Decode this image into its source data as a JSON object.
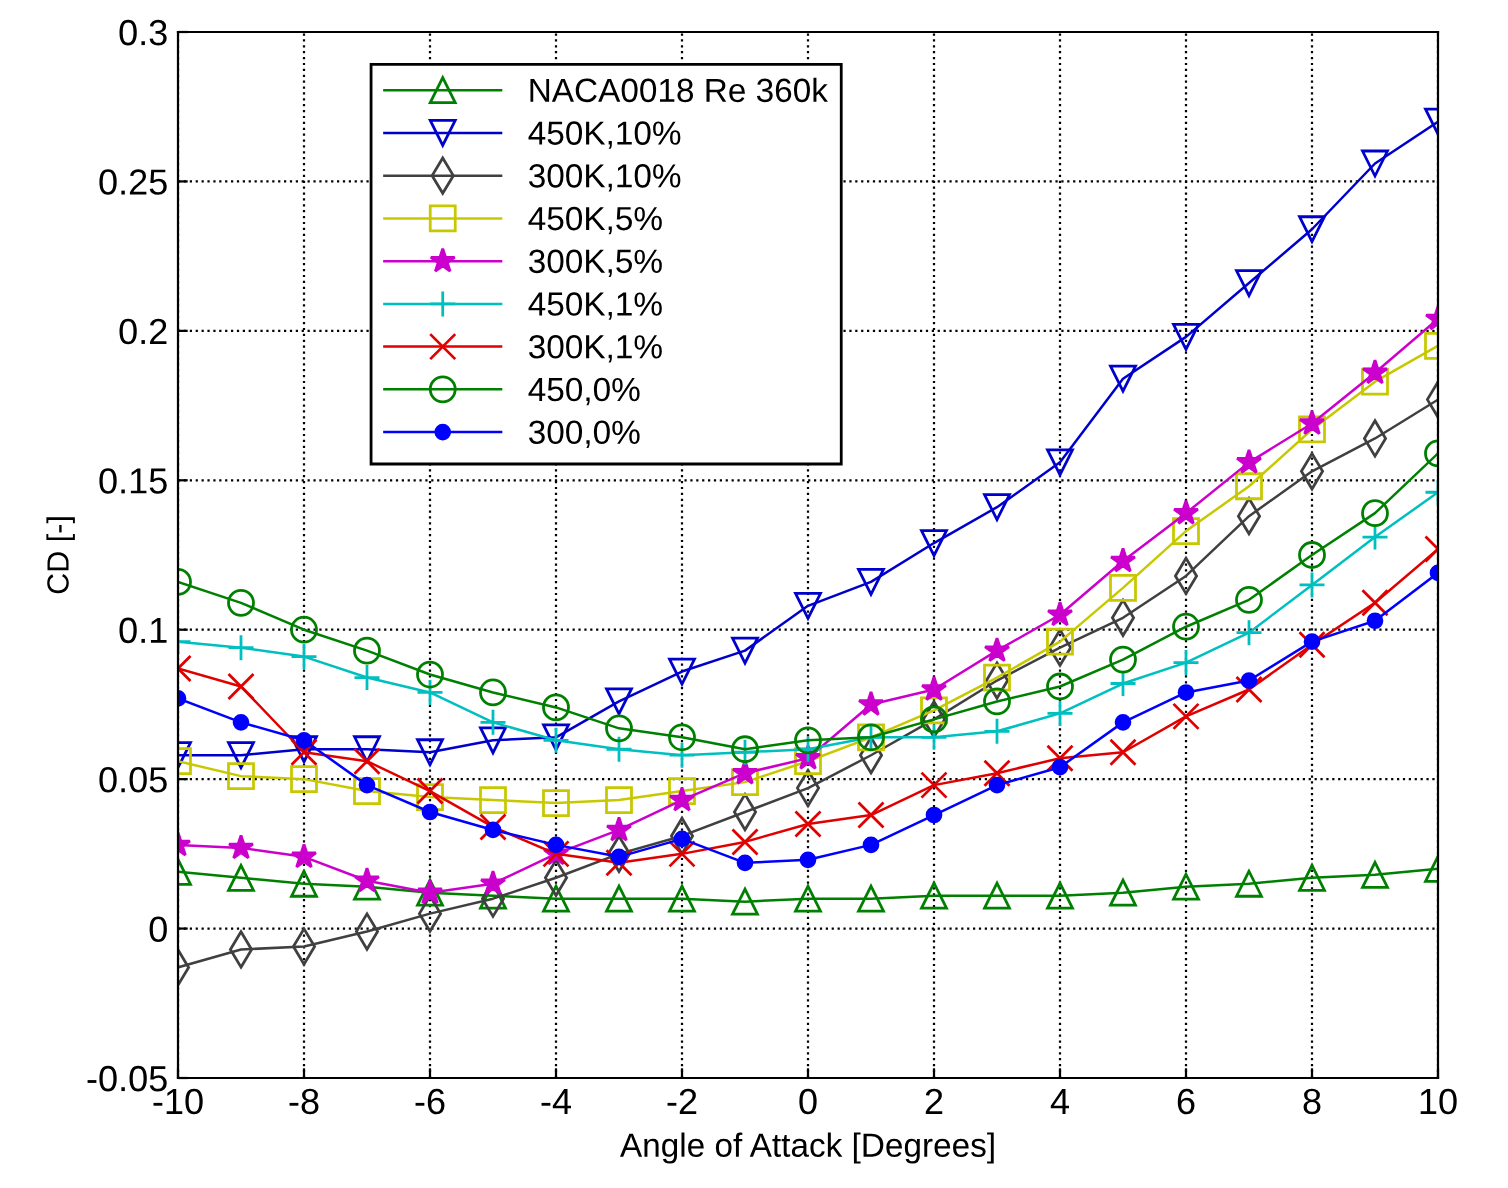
{
  "chart_data": {
    "type": "line",
    "xlabel": "Angle of Attack [Degrees]",
    "ylabel": "CD [-]",
    "x": [
      -10,
      -9,
      -8,
      -7,
      -6,
      -5,
      -4,
      -3,
      -2,
      -1,
      0,
      1,
      2,
      3,
      4,
      5,
      6,
      7,
      8,
      9,
      10
    ],
    "series": [
      {
        "name": "NACA0018 Re 360k",
        "color": "#008000",
        "marker": "triangle",
        "values": [
          0.019,
          0.017,
          0.015,
          0.014,
          0.012,
          0.011,
          0.01,
          0.01,
          0.01,
          0.009,
          0.01,
          0.01,
          0.011,
          0.011,
          0.011,
          0.012,
          0.014,
          0.015,
          0.017,
          0.018,
          0.02
        ]
      },
      {
        "name": "450K,10%",
        "color": "#0000cc",
        "marker": "triangle_down",
        "values": [
          0.058,
          0.058,
          0.06,
          0.06,
          0.059,
          0.063,
          0.064,
          0.076,
          0.086,
          0.093,
          0.108,
          0.116,
          0.129,
          0.141,
          0.156,
          0.184,
          0.198,
          0.216,
          0.234,
          0.256,
          0.27
        ]
      },
      {
        "name": "300K,10%",
        "color": "#404040",
        "marker": "diamond",
        "values": [
          -0.013,
          -0.007,
          -0.006,
          -0.001,
          0.005,
          0.01,
          0.017,
          0.025,
          0.031,
          0.039,
          0.047,
          0.058,
          0.07,
          0.083,
          0.094,
          0.104,
          0.118,
          0.138,
          0.153,
          0.164,
          0.177
        ]
      },
      {
        "name": "450K,5%",
        "color": "#c8c800",
        "marker": "square",
        "values": [
          0.056,
          0.051,
          0.05,
          0.046,
          0.044,
          0.043,
          0.042,
          0.043,
          0.046,
          0.049,
          0.056,
          0.064,
          0.073,
          0.084,
          0.096,
          0.114,
          0.133,
          0.148,
          0.167,
          0.183,
          0.195
        ]
      },
      {
        "name": "300K,5%",
        "color": "#cc00cc",
        "marker": "star",
        "values": [
          0.028,
          0.027,
          0.024,
          0.016,
          0.012,
          0.015,
          0.025,
          0.033,
          0.043,
          0.052,
          0.057,
          0.075,
          0.08,
          0.093,
          0.105,
          0.123,
          0.139,
          0.156,
          0.169,
          0.186,
          0.204
        ]
      },
      {
        "name": "450K,1%",
        "color": "#00bfbf",
        "marker": "plus",
        "values": [
          0.096,
          0.094,
          0.091,
          0.084,
          0.079,
          0.069,
          0.063,
          0.06,
          0.058,
          0.059,
          0.06,
          0.064,
          0.064,
          0.066,
          0.072,
          0.082,
          0.089,
          0.099,
          0.115,
          0.131,
          0.146
        ]
      },
      {
        "name": "300K,1%",
        "color": "#e00000",
        "marker": "x",
        "values": [
          0.087,
          0.081,
          0.059,
          0.056,
          0.046,
          0.034,
          0.025,
          0.022,
          0.025,
          0.029,
          0.035,
          0.038,
          0.048,
          0.052,
          0.057,
          0.059,
          0.071,
          0.08,
          0.095,
          0.109,
          0.127
        ]
      },
      {
        "name": "450,0%",
        "color": "#008000",
        "marker": "circle",
        "values": [
          0.116,
          0.109,
          0.1,
          0.093,
          0.085,
          0.079,
          0.074,
          0.067,
          0.064,
          0.06,
          0.063,
          0.064,
          0.07,
          0.076,
          0.081,
          0.09,
          0.101,
          0.11,
          0.125,
          0.139,
          0.159
        ]
      },
      {
        "name": "300,0%",
        "color": "#0000ff",
        "marker": "point",
        "values": [
          0.077,
          0.069,
          0.063,
          0.048,
          0.039,
          0.033,
          0.028,
          0.024,
          0.03,
          0.022,
          0.023,
          0.028,
          0.038,
          0.048,
          0.054,
          0.069,
          0.079,
          0.083,
          0.096,
          0.103,
          0.119
        ]
      }
    ],
    "xlim": [
      -10,
      10
    ],
    "xticks": [
      -10,
      -8,
      -6,
      -4,
      -2,
      0,
      2,
      4,
      6,
      8,
      10
    ],
    "ylim": [
      -0.05,
      0.3
    ],
    "yticks": [
      -0.05,
      0,
      0.05,
      0.1,
      0.15,
      0.2,
      0.25,
      0.3
    ],
    "grid": true,
    "legend": "top left",
    "line_style": "solid"
  }
}
